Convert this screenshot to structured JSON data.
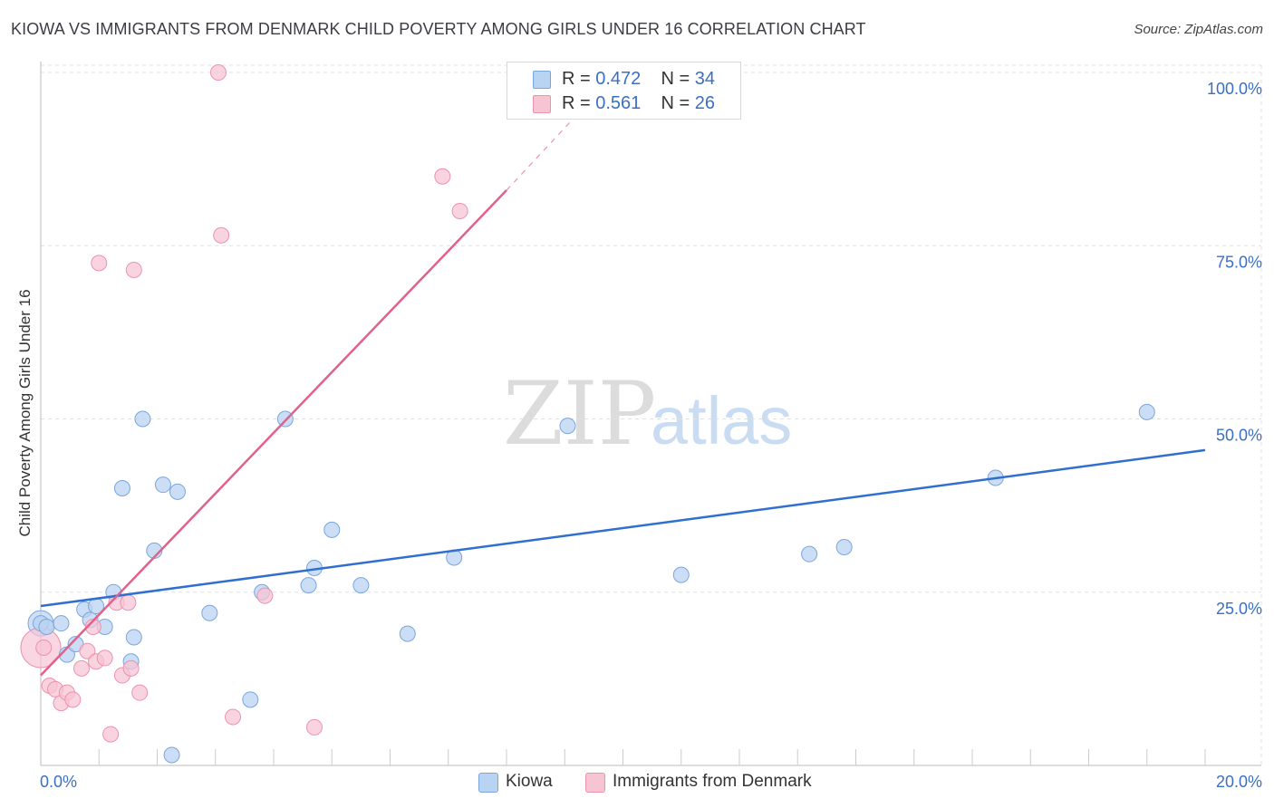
{
  "title": "KIOWA VS IMMIGRANTS FROM DENMARK CHILD POVERTY AMONG GIRLS UNDER 16 CORRELATION CHART",
  "source": "Source: ZipAtlas.com",
  "watermark": {
    "zip": "ZIP",
    "atlas": "atlas"
  },
  "colors": {
    "blue_fill": "#b9d3f2",
    "blue_stroke": "#7aa6df",
    "blue_line": "#2f6fd0",
    "pink_fill": "#f7c4d4",
    "pink_stroke": "#ec93ae",
    "pink_line": "#e0628b",
    "axis_text": "#3b6fc4",
    "grid": "#e0e0e0"
  },
  "legend_top": [
    {
      "r_label": "R =",
      "r_value": "0.472",
      "n_label": "N =",
      "n_value": "34"
    },
    {
      "r_label": "R =",
      "r_value": "0.561",
      "n_label": "N =",
      "n_value": "26"
    }
  ],
  "chart_data": {
    "type": "scatter",
    "title": "KIOWA VS IMMIGRANTS FROM DENMARK CHILD POVERTY AMONG GIRLS UNDER 16 CORRELATION CHART",
    "xlabel": "",
    "ylabel": "Child Poverty Among Girls Under 16",
    "xlim": [
      0,
      20
    ],
    "ylim": [
      0,
      102
    ],
    "x_tick_labels": [
      "0.0%",
      "20.0%"
    ],
    "y_tick_labels": [
      "25.0%",
      "50.0%",
      "75.0%",
      "100.0%"
    ],
    "y_ticks": [
      25,
      50,
      75,
      100
    ],
    "legend": [
      "Kiowa",
      "Immigrants from Denmark"
    ],
    "series": [
      {
        "name": "Kiowa",
        "points": [
          [
            0.0,
            20.5
          ],
          [
            0.1,
            20.0
          ],
          [
            0.35,
            20.5
          ],
          [
            0.45,
            16.0
          ],
          [
            0.6,
            17.5
          ],
          [
            0.75,
            22.5
          ],
          [
            0.85,
            21.0
          ],
          [
            0.95,
            23.0
          ],
          [
            1.1,
            20.0
          ],
          [
            1.25,
            25.0
          ],
          [
            1.4,
            40.0
          ],
          [
            1.55,
            15.0
          ],
          [
            1.6,
            18.5
          ],
          [
            1.75,
            50.0
          ],
          [
            1.95,
            31.0
          ],
          [
            2.1,
            40.5
          ],
          [
            2.35,
            39.5
          ],
          [
            2.9,
            22.0
          ],
          [
            2.25,
            1.5
          ],
          [
            3.6,
            9.5
          ],
          [
            3.8,
            25.0
          ],
          [
            4.2,
            50.0
          ],
          [
            4.6,
            26.0
          ],
          [
            4.7,
            28.5
          ],
          [
            5.0,
            34.0
          ],
          [
            5.5,
            26.0
          ],
          [
            6.3,
            19.0
          ],
          [
            7.1,
            30.0
          ],
          [
            9.05,
            49.0
          ],
          [
            11.0,
            27.5
          ],
          [
            13.2,
            30.5
          ],
          [
            13.8,
            31.5
          ],
          [
            16.4,
            41.5
          ],
          [
            19.0,
            51.0
          ]
        ],
        "trend": {
          "x": [
            0,
            20
          ],
          "y": [
            23.0,
            45.5
          ]
        }
      },
      {
        "name": "Immigrants from Denmark",
        "points": [
          [
            0.05,
            17.0
          ],
          [
            0.15,
            11.5
          ],
          [
            0.25,
            11.0
          ],
          [
            0.35,
            9.0
          ],
          [
            0.45,
            10.5
          ],
          [
            0.55,
            9.5
          ],
          [
            0.7,
            14.0
          ],
          [
            0.8,
            16.5
          ],
          [
            0.9,
            20.0
          ],
          [
            0.95,
            15.0
          ],
          [
            1.0,
            72.5
          ],
          [
            1.1,
            15.5
          ],
          [
            1.2,
            4.5
          ],
          [
            1.3,
            23.5
          ],
          [
            1.4,
            13.0
          ],
          [
            1.5,
            23.5
          ],
          [
            1.55,
            14.0
          ],
          [
            1.6,
            71.5
          ],
          [
            1.7,
            10.5
          ],
          [
            3.05,
            100.0
          ],
          [
            3.1,
            76.5
          ],
          [
            3.3,
            7.0
          ],
          [
            3.85,
            24.5
          ],
          [
            4.7,
            5.5
          ],
          [
            6.9,
            85.0
          ],
          [
            7.2,
            80.0
          ]
        ],
        "trend": {
          "x": [
            0,
            8.0
          ],
          "y": [
            13.0,
            83.0
          ]
        },
        "trend_dashed": {
          "x": [
            8.0,
            9.5
          ],
          "y": [
            83.0,
            96.5
          ]
        }
      }
    ]
  }
}
